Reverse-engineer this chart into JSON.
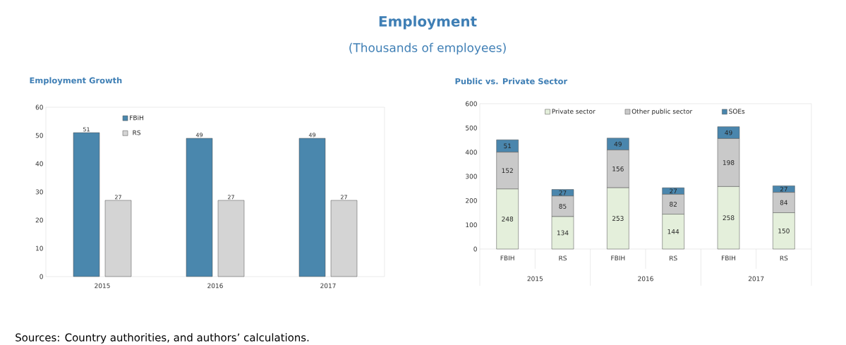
{
  "chart_data": [
    {
      "type": "other",
      "title": "Employment",
      "subtitle": "(Thousands of employees)",
      "annotations": [
        "Sources: Country authorities, and authors’ calculations."
      ]
    },
    {
      "type": "bar",
      "title": "Employment Growth",
      "categories": [
        "2015",
        "2016",
        "2017"
      ],
      "series": [
        {
          "name": "FBiH",
          "color": "#4a87ad",
          "values": [
            51,
            49,
            49
          ]
        },
        {
          "name": "RS",
          "color": "#d4d4d4",
          "values": [
            27,
            27,
            27
          ]
        }
      ],
      "ylim": [
        0,
        60
      ],
      "yticks": [
        0,
        10,
        20,
        30,
        40,
        50,
        60
      ],
      "data_labels": true,
      "legend": "top left"
    },
    {
      "type": "bar",
      "stacked": true,
      "title": "Public vs. Private Sector",
      "categories": [
        "FBIH",
        "RS",
        "FBIH",
        "RS",
        "FBIH",
        "RS"
      ],
      "series": [
        {
          "name": "Private sector",
          "color": "#e4efdb",
          "values": [
            248,
            134,
            253,
            144,
            258,
            150
          ]
        },
        {
          "name": "Other public sector",
          "color": "#c9c9c9",
          "values": [
            152,
            85,
            156,
            82,
            198,
            84
          ]
        },
        {
          "name": "SOEs",
          "color": "#4a86ad",
          "values": [
            51,
            27,
            49,
            27,
            49,
            27
          ]
        }
      ],
      "ylim": [
        0,
        600
      ],
      "yticks": [
        0,
        100,
        200,
        300,
        400,
        500,
        600
      ],
      "data_labels": true,
      "legend": "top",
      "annotations": [
        "2015",
        "2016",
        "2017"
      ]
    }
  ]
}
